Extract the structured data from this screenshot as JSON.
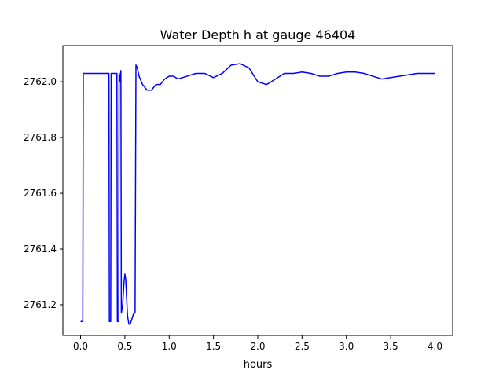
{
  "chart_data": {
    "type": "line",
    "title": "Water Depth h at gauge 46404",
    "xlabel": "hours",
    "ylabel": "",
    "xlim": [
      -0.2,
      4.2
    ],
    "ylim": [
      2761.09,
      2762.13
    ],
    "x_ticks": [
      0.0,
      0.5,
      1.0,
      1.5,
      2.0,
      2.5,
      3.0,
      3.5,
      4.0
    ],
    "x_tick_labels": [
      "0.0",
      "0.5",
      "1.0",
      "1.5",
      "2.0",
      "2.5",
      "3.0",
      "3.5",
      "4.0"
    ],
    "y_ticks": [
      2761.2,
      2761.4,
      2761.6,
      2761.8,
      2762.0
    ],
    "y_tick_labels": [
      "2761.2",
      "2761.4",
      "2761.6",
      "2761.8",
      "2762.0"
    ],
    "grid": false,
    "legend": "none",
    "series": [
      {
        "name": "",
        "color": "#0000ff",
        "points": [
          [
            0.0,
            2761.14
          ],
          [
            0.025,
            2761.14
          ],
          [
            0.03,
            2762.03
          ],
          [
            0.32,
            2762.03
          ],
          [
            0.325,
            2761.14
          ],
          [
            0.34,
            2761.14
          ],
          [
            0.345,
            2762.03
          ],
          [
            0.41,
            2762.03
          ],
          [
            0.415,
            2761.14
          ],
          [
            0.43,
            2761.14
          ],
          [
            0.435,
            2762.03
          ],
          [
            0.445,
            2762.0
          ],
          [
            0.455,
            2762.04
          ],
          [
            0.46,
            2761.17
          ],
          [
            0.475,
            2761.2
          ],
          [
            0.49,
            2761.28
          ],
          [
            0.5,
            2761.31
          ],
          [
            0.51,
            2761.29
          ],
          [
            0.52,
            2761.22
          ],
          [
            0.53,
            2761.16
          ],
          [
            0.545,
            2761.13
          ],
          [
            0.56,
            2761.13
          ],
          [
            0.58,
            2761.15
          ],
          [
            0.6,
            2761.17
          ],
          [
            0.615,
            2761.17
          ],
          [
            0.625,
            2762.06
          ],
          [
            0.64,
            2762.05
          ],
          [
            0.66,
            2762.02
          ],
          [
            0.7,
            2761.99
          ],
          [
            0.75,
            2761.97
          ],
          [
            0.8,
            2761.97
          ],
          [
            0.85,
            2761.99
          ],
          [
            0.9,
            2761.99
          ],
          [
            0.95,
            2762.01
          ],
          [
            1.0,
            2762.02
          ],
          [
            1.05,
            2762.02
          ],
          [
            1.1,
            2762.01
          ],
          [
            1.2,
            2762.02
          ],
          [
            1.3,
            2762.03
          ],
          [
            1.4,
            2762.03
          ],
          [
            1.5,
            2762.015
          ],
          [
            1.6,
            2762.03
          ],
          [
            1.7,
            2762.06
          ],
          [
            1.8,
            2762.065
          ],
          [
            1.9,
            2762.05
          ],
          [
            2.0,
            2762.0
          ],
          [
            2.1,
            2761.99
          ],
          [
            2.2,
            2762.01
          ],
          [
            2.3,
            2762.03
          ],
          [
            2.4,
            2762.03
          ],
          [
            2.5,
            2762.035
          ],
          [
            2.6,
            2762.03
          ],
          [
            2.7,
            2762.02
          ],
          [
            2.8,
            2762.02
          ],
          [
            2.9,
            2762.03
          ],
          [
            3.0,
            2762.035
          ],
          [
            3.1,
            2762.035
          ],
          [
            3.2,
            2762.03
          ],
          [
            3.3,
            2762.02
          ],
          [
            3.4,
            2762.01
          ],
          [
            3.5,
            2762.015
          ],
          [
            3.6,
            2762.02
          ],
          [
            3.7,
            2762.025
          ],
          [
            3.8,
            2762.03
          ],
          [
            3.9,
            2762.03
          ],
          [
            4.0,
            2762.03
          ]
        ]
      }
    ]
  }
}
